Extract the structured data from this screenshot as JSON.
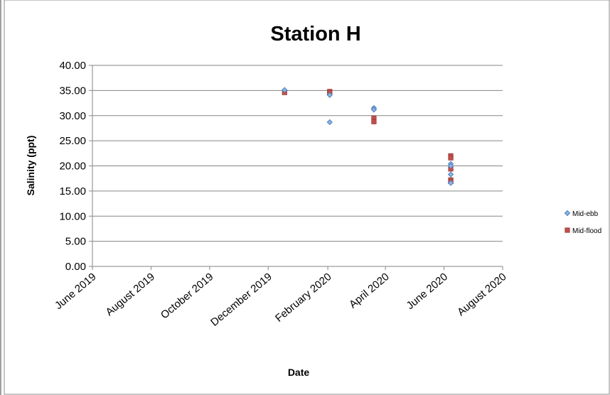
{
  "chart_data": {
    "type": "scatter",
    "title": "Station H",
    "xlabel": "Date",
    "ylabel": "Salinity (ppt)",
    "ylim": [
      0,
      40
    ],
    "y_ticks": [
      "0.00",
      "5.00",
      "10.00",
      "15.00",
      "20.00",
      "25.00",
      "30.00",
      "35.00",
      "40.00"
    ],
    "xlim": [
      "2019-06-01",
      "2020-08-01"
    ],
    "x_ticks": [
      {
        "date": "2019-06-01",
        "label": "June 2019"
      },
      {
        "date": "2019-08-01",
        "label": "August 2019"
      },
      {
        "date": "2019-10-01",
        "label": "October 2019"
      },
      {
        "date": "2019-12-01",
        "label": "December 2019"
      },
      {
        "date": "2020-02-01",
        "label": "February 2020"
      },
      {
        "date": "2020-04-01",
        "label": "April 2020"
      },
      {
        "date": "2020-06-01",
        "label": "June 2020"
      },
      {
        "date": "2020-08-01",
        "label": "August 2020"
      }
    ],
    "grid": "horizontal",
    "legend_position": "right",
    "series": [
      {
        "name": "Mid-ebb",
        "marker": "diamond",
        "color": "#4F81BD",
        "points": [
          {
            "x": "2019-12-18",
            "y": 35.1
          },
          {
            "x": "2020-02-03",
            "y": 34.1
          },
          {
            "x": "2020-02-03",
            "y": 28.7
          },
          {
            "x": "2020-03-20",
            "y": 31.5
          },
          {
            "x": "2020-03-20",
            "y": 31.2
          },
          {
            "x": "2020-06-08",
            "y": 20.4
          },
          {
            "x": "2020-06-08",
            "y": 20.0
          },
          {
            "x": "2020-06-08",
            "y": 18.3
          },
          {
            "x": "2020-06-08",
            "y": 16.6
          }
        ]
      },
      {
        "name": "Mid-flood",
        "marker": "square",
        "color": "#C0504D",
        "points": [
          {
            "x": "2019-12-18",
            "y": 34.6
          },
          {
            "x": "2020-02-03",
            "y": 34.8
          },
          {
            "x": "2020-02-03",
            "y": 34.5
          },
          {
            "x": "2020-03-20",
            "y": 29.5
          },
          {
            "x": "2020-03-20",
            "y": 28.8
          },
          {
            "x": "2020-06-08",
            "y": 22.0
          },
          {
            "x": "2020-06-08",
            "y": 21.6
          },
          {
            "x": "2020-06-08",
            "y": 19.4
          },
          {
            "x": "2020-06-08",
            "y": 17.2
          },
          {
            "x": "2020-06-08",
            "y": 16.9
          }
        ]
      }
    ]
  }
}
